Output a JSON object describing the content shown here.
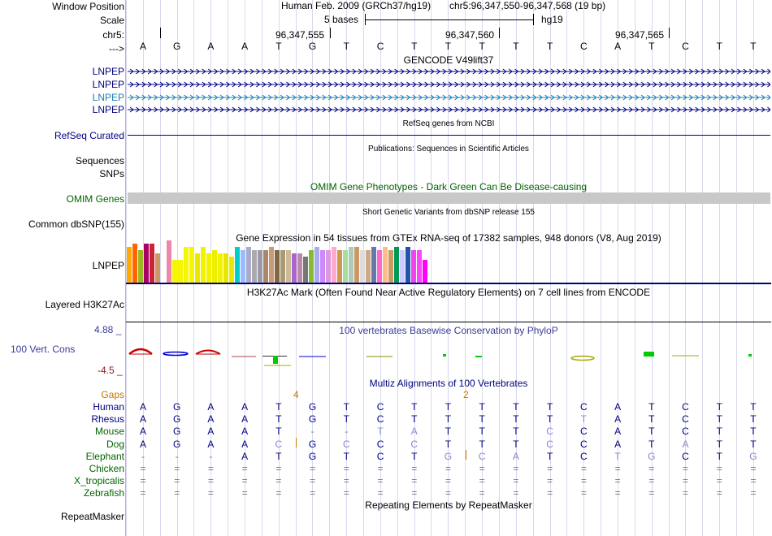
{
  "colors": {
    "navy": "#000080",
    "omim_green": "#006400",
    "cons_blue": "#3a3a99",
    "cons_red": "#8b1a1a",
    "gaps_orange": "#c87800",
    "lnpep_teal": "#1a7fae",
    "omim_gray": "#c8c8c8"
  },
  "header": {
    "window_position_label": "Window Position",
    "scale_label": "Scale",
    "chr_label": "chr5:",
    "strand_label": "--->",
    "assembly_text": "Human Feb. 2009 (GRCh37/hg19)",
    "position_text": "chr5:96,347,550-96,347,568 (19 bp)",
    "scale_text": "5 bases",
    "scale_db": "hg19",
    "ticks": [
      "96,347,555",
      "96,347,560",
      "96,347,565"
    ]
  },
  "dna_sequence": [
    "A",
    "G",
    "A",
    "A",
    "T",
    "G",
    "T",
    "C",
    "T",
    "T",
    "T",
    "T",
    "T",
    "C",
    "A",
    "T",
    "C",
    "T",
    "T"
  ],
  "tracks": {
    "gencode_title": "GENCODE V49lift37",
    "gencode_items": [
      {
        "label": "LNPEP",
        "color": "#000080"
      },
      {
        "label": "LNPEP",
        "color": "#000080"
      },
      {
        "label": "LNPEP",
        "color": "#1a7fae"
      },
      {
        "label": "LNPEP",
        "color": "#000080"
      }
    ],
    "refseq_title": "RefSeq genes from NCBI",
    "refseq_label": "RefSeq Curated",
    "publications_title": "Publications: Sequences in Scientific Articles",
    "sequences_label": "Sequences",
    "snps_label": "SNPs",
    "omim_title": "OMIM Gene Phenotypes - Dark Green Can Be Disease-causing",
    "omim_label": "OMIM Genes",
    "dbsnp_title": "Short Genetic Variants from dbSNP release 155",
    "dbsnp_label": "Common dbSNP(155)",
    "gtex_title": "Gene Expression in 54 tissues from GTEx RNA-seq of 17382 samples, 948 donors (V8, Aug 2019)",
    "gtex_label": "LNPEP",
    "gtex_colors": [
      "#ffaa00",
      "#ff6600",
      "#9ab820",
      "#aa0066",
      "#cc2233",
      "#cc9966",
      "#ffffff",
      "#ee88aa",
      "#f6f600",
      "#f6f600",
      "#f6f600",
      "#f6f600",
      "#e8e800",
      "#f2f200",
      "#f2f200",
      "#eeee00",
      "#f2f200",
      "#e6e600",
      "#e8e800",
      "#00cccc",
      "#99bbff",
      "#aaaacc",
      "#aaaaaa",
      "#9999aa",
      "#aa8866",
      "#cc9977",
      "#7f6644",
      "#aa9977",
      "#ccbb99",
      "#aa66cc",
      "#bb88aa",
      "#777777",
      "#88bb33",
      "#aaaaee",
      "#cc88ff",
      "#dd99dd",
      "#ffaacc",
      "#cc9955",
      "#aadd99",
      "#aaccbb",
      "#cc9966",
      "#dddddd",
      "#ccaa88",
      "#6677aa",
      "#ff66cc",
      "#ffbb88",
      "#cc9966",
      "#009955",
      "#ccccff",
      "#2255aa",
      "#ee44ee",
      "#ff44ff",
      "#ff00ff",
      "#ffffff"
    ],
    "gtex_values": [
      0.55,
      0.6,
      0.5,
      0.6,
      0.6,
      0.45,
      0.4,
      0.65,
      0.35,
      0.35,
      0.55,
      0.55,
      0.45,
      0.55,
      0.45,
      0.5,
      0.45,
      0.45,
      0.4,
      0.55,
      0.5,
      0.55,
      0.5,
      0.5,
      0.5,
      0.55,
      0.5,
      0.5,
      0.5,
      0.45,
      0.45,
      0.4,
      0.5,
      0.55,
      0.5,
      0.5,
      0.55,
      0.5,
      0.5,
      0.55,
      0.55,
      0.5,
      0.5,
      0.55,
      0.5,
      0.55,
      0.5,
      0.55,
      0.5,
      0.55,
      0.5,
      0.5,
      0.35,
      0.0
    ],
    "h3k27ac_title": "H3K27Ac Mark (Often Found Near Active Regulatory Elements) on 7 cell lines from ENCODE",
    "h3k27ac_label": "Layered H3K27Ac",
    "cons_title": "100 vertebrates Basewise Conservation by PhyloP",
    "cons_label": "100 Vert. Cons",
    "cons_max": "4.88 _",
    "cons_min": "-4.5 _",
    "multiz_title": "Multiz Alignments of 100 Vertebrates",
    "gaps_label": "Gaps",
    "gap_counts": [
      {
        "col": 4,
        "text": "4"
      },
      {
        "col": 9,
        "text": "2"
      }
    ],
    "species": [
      {
        "name": "Human",
        "seq": [
          "A",
          "G",
          "A",
          "A",
          "T",
          "G",
          "T",
          "C",
          "T",
          "T",
          "T",
          "T",
          "T",
          "C",
          "A",
          "T",
          "C",
          "T",
          "T"
        ]
      },
      {
        "name": "Rhesus",
        "seq": [
          "A",
          "G",
          "A",
          "A",
          "T",
          "G",
          "T",
          "C",
          "T",
          "T",
          "T",
          "T",
          "T",
          "T",
          "A",
          "T",
          "C",
          "T",
          "T"
        ]
      },
      {
        "name": "Mouse",
        "seq": [
          "A",
          "G",
          "A",
          "A",
          "T",
          "-",
          "-",
          "T",
          "A",
          "T",
          "T",
          "T",
          "C",
          "C",
          "A",
          "T",
          "C",
          "T",
          "T"
        ]
      },
      {
        "name": "Dog",
        "seq": [
          "A",
          "G",
          "A",
          "A",
          "C",
          "G",
          "C",
          "C",
          "C",
          "T",
          "T",
          "T",
          "C",
          "C",
          "A",
          "T",
          "A",
          "T",
          "T"
        ]
      },
      {
        "name": "Elephant",
        "seq": [
          "-",
          "-",
          "-",
          "A",
          "T",
          "G",
          "T",
          "C",
          "T",
          "G",
          "C",
          "A",
          "T",
          "C",
          "T",
          "G",
          "C",
          "T",
          "G"
        ]
      },
      {
        "name": "Chicken",
        "seq": [
          "=",
          "=",
          "=",
          "=",
          "=",
          "=",
          "=",
          "=",
          "=",
          "=",
          "=",
          "=",
          "=",
          "=",
          "=",
          "=",
          "=",
          "=",
          "="
        ]
      },
      {
        "name": "X_tropicalis",
        "seq": [
          "=",
          "=",
          "=",
          "=",
          "=",
          "=",
          "=",
          "=",
          "=",
          "=",
          "=",
          "=",
          "=",
          "=",
          "=",
          "=",
          "=",
          "=",
          "="
        ]
      },
      {
        "name": "Zebrafish",
        "seq": [
          "=",
          "=",
          "=",
          "=",
          "=",
          "=",
          "=",
          "=",
          "=",
          "=",
          "=",
          "=",
          "=",
          "=",
          "=",
          "=",
          "=",
          "=",
          "="
        ]
      }
    ],
    "repeatmasker_title": "Repeating Elements by RepeatMasker",
    "repeatmasker_label": "RepeatMasker"
  }
}
